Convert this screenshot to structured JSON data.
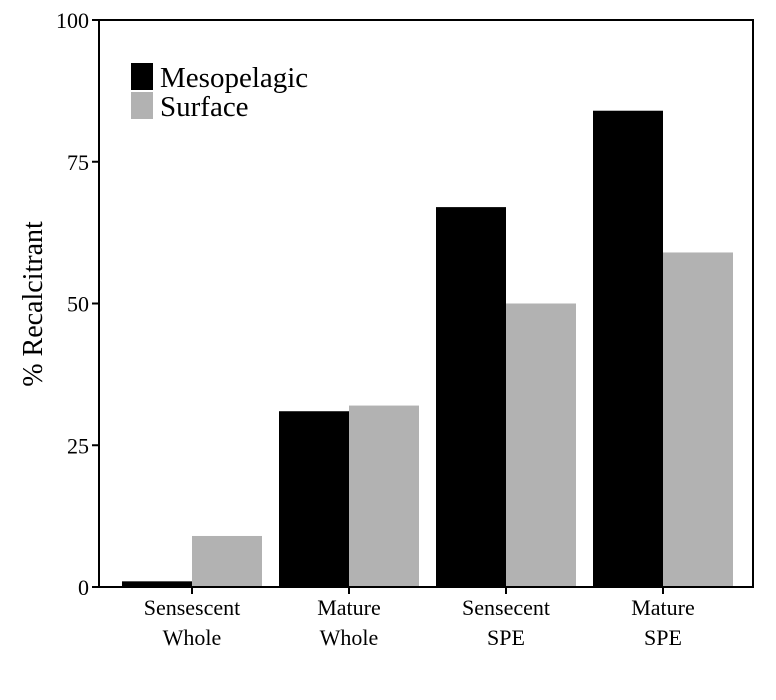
{
  "chart_data": {
    "type": "bar",
    "categories": [
      [
        "Sensescent",
        "Whole"
      ],
      [
        "Mature",
        "Whole"
      ],
      [
        "Sensecent",
        "SPE"
      ],
      [
        "Mature",
        "SPE"
      ]
    ],
    "series": [
      {
        "name": "Mesopelagic",
        "color": "#000000",
        "values": [
          1,
          31,
          67,
          84
        ]
      },
      {
        "name": "Surface",
        "color": "#b2b2b2",
        "values": [
          9,
          32,
          50,
          59
        ]
      }
    ],
    "title": "",
    "xlabel": "",
    "ylabel": "% Recalcitrant",
    "ylim": [
      0,
      100
    ],
    "yticks": [
      0,
      25,
      50,
      75,
      100
    ],
    "grid": false,
    "legend_position": "top-left"
  }
}
